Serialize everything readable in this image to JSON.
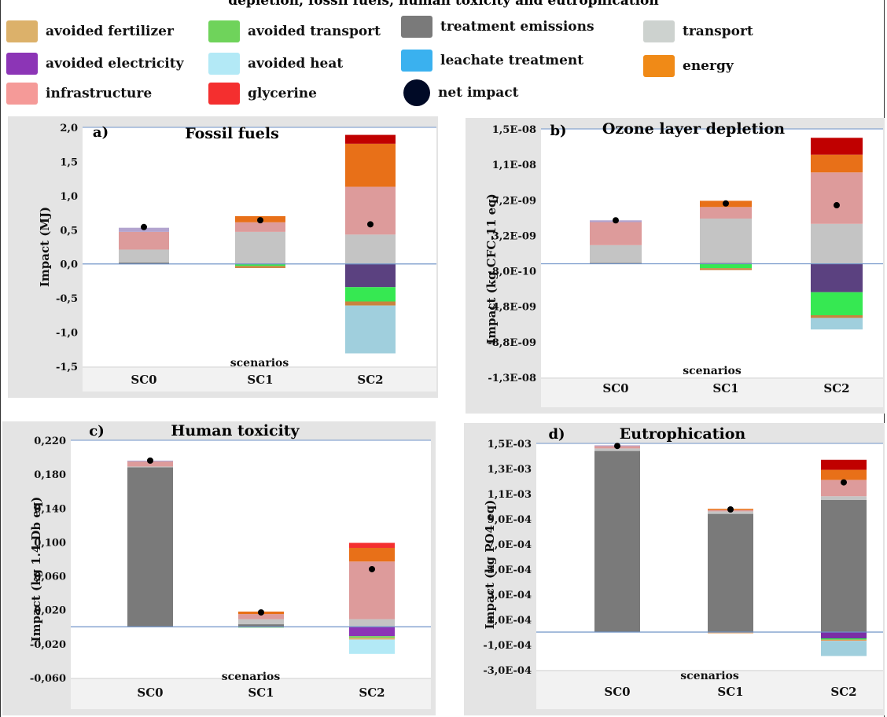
{
  "figure_title": "depletion, fossil fuels, human toxicity and eutrophication",
  "legend": [
    {
      "label": "avoided fertilizer",
      "color": "#dcb16a",
      "shape": "square"
    },
    {
      "label": "avoided electricity",
      "color": "#8c35b6",
      "shape": "square"
    },
    {
      "label": "infrastructure",
      "color": "#f59a98",
      "shape": "square"
    },
    {
      "label": "avoided transport",
      "color": "#6fd35b",
      "shape": "square"
    },
    {
      "label": "avoided  heat",
      "color": "#b3e9f6",
      "shape": "square"
    },
    {
      "label": "glycerine",
      "color": "#f42f2f",
      "shape": "square"
    },
    {
      "label": "treatment emissions",
      "color": "#7a7a7a",
      "shape": "square"
    },
    {
      "label": "leachate treatment",
      "color": "#3ab1ef",
      "shape": "square"
    },
    {
      "label": "net impact",
      "color": "#000a26",
      "shape": "circle"
    },
    {
      "label": "transport",
      "color": "#cdd2cf",
      "shape": "square"
    },
    {
      "label": "energy",
      "color": "#f08a17",
      "shape": "square"
    }
  ],
  "chart_data": [
    {
      "type": "bar",
      "stacked": true,
      "panel": "a)",
      "title": "Fossil fuels",
      "ylabel": "Impact (MJ)",
      "xlabel": "scenarios",
      "categories": [
        "SC0",
        "SC1",
        "SC2"
      ],
      "ylim": [
        -1.5,
        2.0
      ],
      "yticks": [
        "2,0",
        "1,5",
        "1,0",
        "0,5",
        "0,0",
        "-0,5",
        "-1,0",
        "-1,5"
      ],
      "ytick_values": [
        2.0,
        1.5,
        1.0,
        0.5,
        0.0,
        -0.5,
        -1.0,
        -1.5
      ],
      "series": [
        {
          "name": "treatment emissions",
          "color": "#7a7a7a",
          "values": [
            0.02,
            0,
            0
          ]
        },
        {
          "name": "transport",
          "color": "#c4c4c4",
          "values": [
            0.19,
            0.47,
            0.43
          ]
        },
        {
          "name": "infrastructure",
          "color": "#dd9b9b",
          "values": [
            0.26,
            0.14,
            0.7
          ]
        },
        {
          "name": "avoided electricity",
          "color": "#b3a4cf",
          "values": [
            0.06,
            0,
            0
          ]
        },
        {
          "name": "energy",
          "color": "#e87018",
          "values": [
            0,
            0.09,
            0.63
          ]
        },
        {
          "name": "glycerine",
          "color": "#c00000",
          "values": [
            0,
            0,
            0.13
          ]
        },
        {
          "name": "avoided electricity (negative)",
          "color": "#5b4180",
          "values": [
            0,
            0,
            -0.34
          ]
        },
        {
          "name": "avoided transport",
          "color": "#36e852",
          "values": [
            0,
            -0.03,
            -0.21
          ]
        },
        {
          "name": "avoided fertilizer",
          "color": "#c9833f",
          "values": [
            0,
            -0.03,
            -0.06
          ]
        },
        {
          "name": "avoided  heat",
          "color": "#a0cfdd",
          "values": [
            0,
            0,
            -0.7
          ]
        }
      ],
      "net_impact": [
        0.54,
        0.64,
        0.58
      ]
    },
    {
      "type": "bar",
      "stacked": true,
      "panel": "b)",
      "title": "Ozone layer depletion",
      "ylabel": "Impact (kg CFC-11 eq)",
      "xlabel": "scenarios",
      "categories": [
        "SC0",
        "SC1",
        "SC2"
      ],
      "ylim": [
        -1.28e-08,
        1.52e-08
      ],
      "yticks": [
        "1,5E-08",
        "1,1E-08",
        "7,2E-09",
        "3,2E-09",
        "-8,0E-10",
        "-4,8E-09",
        "-8,8E-09",
        "-1,3E-08"
      ],
      "ytick_values": [
        1.52e-08,
        1.12e-08,
        7.2e-09,
        3.2e-09,
        -8e-10,
        -4.8e-09,
        -8.8e-09,
        -1.28e-08
      ],
      "series": [
        {
          "name": "treatment emissions",
          "color": "#7a7a7a",
          "values": [
            1e-10,
            1e-10,
            0
          ]
        },
        {
          "name": "transport",
          "color": "#c4c4c4",
          "values": [
            2e-09,
            5e-09,
            4.5e-09
          ]
        },
        {
          "name": "infrastructure",
          "color": "#dd9b9b",
          "values": [
            2.6e-09,
            1.3e-09,
            5.8e-09
          ]
        },
        {
          "name": "avoided electricity",
          "color": "#b3a4cf",
          "values": [
            2e-10,
            0,
            0
          ]
        },
        {
          "name": "energy",
          "color": "#e87018",
          "values": [
            0,
            7e-10,
            2e-09
          ]
        },
        {
          "name": "glycerine",
          "color": "#c00000",
          "values": [
            0,
            0,
            1.9e-09
          ]
        },
        {
          "name": "avoided electricity (negative)",
          "color": "#5b4180",
          "values": [
            0,
            0,
            -3.2e-09
          ]
        },
        {
          "name": "avoided transport",
          "color": "#36e852",
          "values": [
            0,
            -5e-10,
            -2.6e-09
          ]
        },
        {
          "name": "avoided fertilizer",
          "color": "#c9833f",
          "values": [
            0,
            -2e-10,
            -3e-10
          ]
        },
        {
          "name": "avoided  heat",
          "color": "#a0cfdd",
          "values": [
            0,
            0,
            -1.3e-09
          ]
        }
      ],
      "net_impact": [
        4.9e-09,
        6.8e-09,
        6.6e-09
      ]
    },
    {
      "type": "bar",
      "stacked": true,
      "panel": "c)",
      "title": "Human toxicity",
      "ylabel": "Impact (kg 1.4 Db eq)",
      "xlabel": "scenarios",
      "categories": [
        "SC0",
        "SC1",
        "SC2"
      ],
      "ylim": [
        -0.06,
        0.22
      ],
      "yticks": [
        "0,220",
        "0,180",
        "0,140",
        "0,100",
        "0,060",
        "0,020",
        "-0,020",
        "-0,060"
      ],
      "ytick_values": [
        0.22,
        0.18,
        0.14,
        0.1,
        0.06,
        0.02,
        -0.02,
        -0.06
      ],
      "series": [
        {
          "name": "treatment emissions",
          "color": "#7a7a7a",
          "values": [
            0.188,
            0.003,
            0
          ]
        },
        {
          "name": "transport",
          "color": "#c4c4c4",
          "values": [
            0.001,
            0.006,
            0.009
          ]
        },
        {
          "name": "infrastructure",
          "color": "#dd9b9b",
          "values": [
            0.006,
            0.006,
            0.068
          ]
        },
        {
          "name": "avoided electricity",
          "color": "#b3a4cf",
          "values": [
            0.001,
            0,
            0
          ]
        },
        {
          "name": "energy",
          "color": "#e87018",
          "values": [
            0,
            0.003,
            0.016
          ]
        },
        {
          "name": "glycerine",
          "color": "#f42f2f",
          "values": [
            0,
            0,
            0.006
          ]
        },
        {
          "name": "avoided electricity (negative)",
          "color": "#8c35b6",
          "values": [
            0,
            0,
            -0.011
          ]
        },
        {
          "name": "avoided transport",
          "color": "#6fd35b",
          "values": [
            0,
            -0.001,
            -0.002
          ]
        },
        {
          "name": "avoided fertilizer",
          "color": "#dcb16a",
          "values": [
            0,
            0,
            -0.002
          ]
        },
        {
          "name": "avoided  heat",
          "color": "#b3e9f6",
          "values": [
            0,
            0,
            -0.017
          ]
        }
      ],
      "net_impact": [
        0.196,
        0.017,
        0.068
      ]
    },
    {
      "type": "bar",
      "stacked": true,
      "panel": "d)",
      "title": "Eutrophication",
      "ylabel": "Impact (kg PO4 eq)",
      "xlabel": "scenarios",
      "categories": [
        "SC0",
        "SC1",
        "SC2"
      ],
      "ylim": [
        -0.0003,
        0.0015
      ],
      "yticks": [
        "1,5E-03",
        "1,3E-03",
        "1,1E-03",
        "9,0E-04",
        "7,0E-04",
        "5,0E-04",
        "3,0E-04",
        "1,0E-04",
        "-1,0E-04",
        "-3,0E-04"
      ],
      "ytick_values": [
        0.0015,
        0.0013,
        0.0011,
        0.0009,
        0.0007,
        0.0005,
        0.0003,
        0.0001,
        -0.0001,
        -0.0003
      ],
      "series": [
        {
          "name": "treatment emissions",
          "color": "#7a7a7a",
          "values": [
            0.00144,
            0.00094,
            0.00105
          ]
        },
        {
          "name": "transport",
          "color": "#c4c4c4",
          "values": [
            2e-05,
            2e-05,
            3e-05
          ]
        },
        {
          "name": "infrastructure",
          "color": "#dd9b9b",
          "values": [
            2e-05,
            1e-05,
            0.00013
          ]
        },
        {
          "name": "avoided electricity",
          "color": "#b3a4cf",
          "values": [
            5e-06,
            0,
            0
          ]
        },
        {
          "name": "energy",
          "color": "#e87018",
          "values": [
            0,
            1e-05,
            8e-05
          ]
        },
        {
          "name": "glycerine",
          "color": "#c00000",
          "values": [
            0,
            0,
            8e-05
          ]
        },
        {
          "name": "avoided electricity (negative)",
          "color": "#7a2fa6",
          "values": [
            0,
            0,
            -5e-05
          ]
        },
        {
          "name": "avoided transport",
          "color": "#36e852",
          "values": [
            0,
            0,
            -1e-05
          ]
        },
        {
          "name": "avoided fertilizer",
          "color": "#e0a060",
          "values": [
            0,
            -1e-05,
            -1e-05
          ]
        },
        {
          "name": "avoided  heat",
          "color": "#a0cfdd",
          "values": [
            0,
            0,
            -0.00012
          ]
        }
      ],
      "net_impact": [
        0.00148,
        0.000975,
        0.00119
      ]
    }
  ]
}
